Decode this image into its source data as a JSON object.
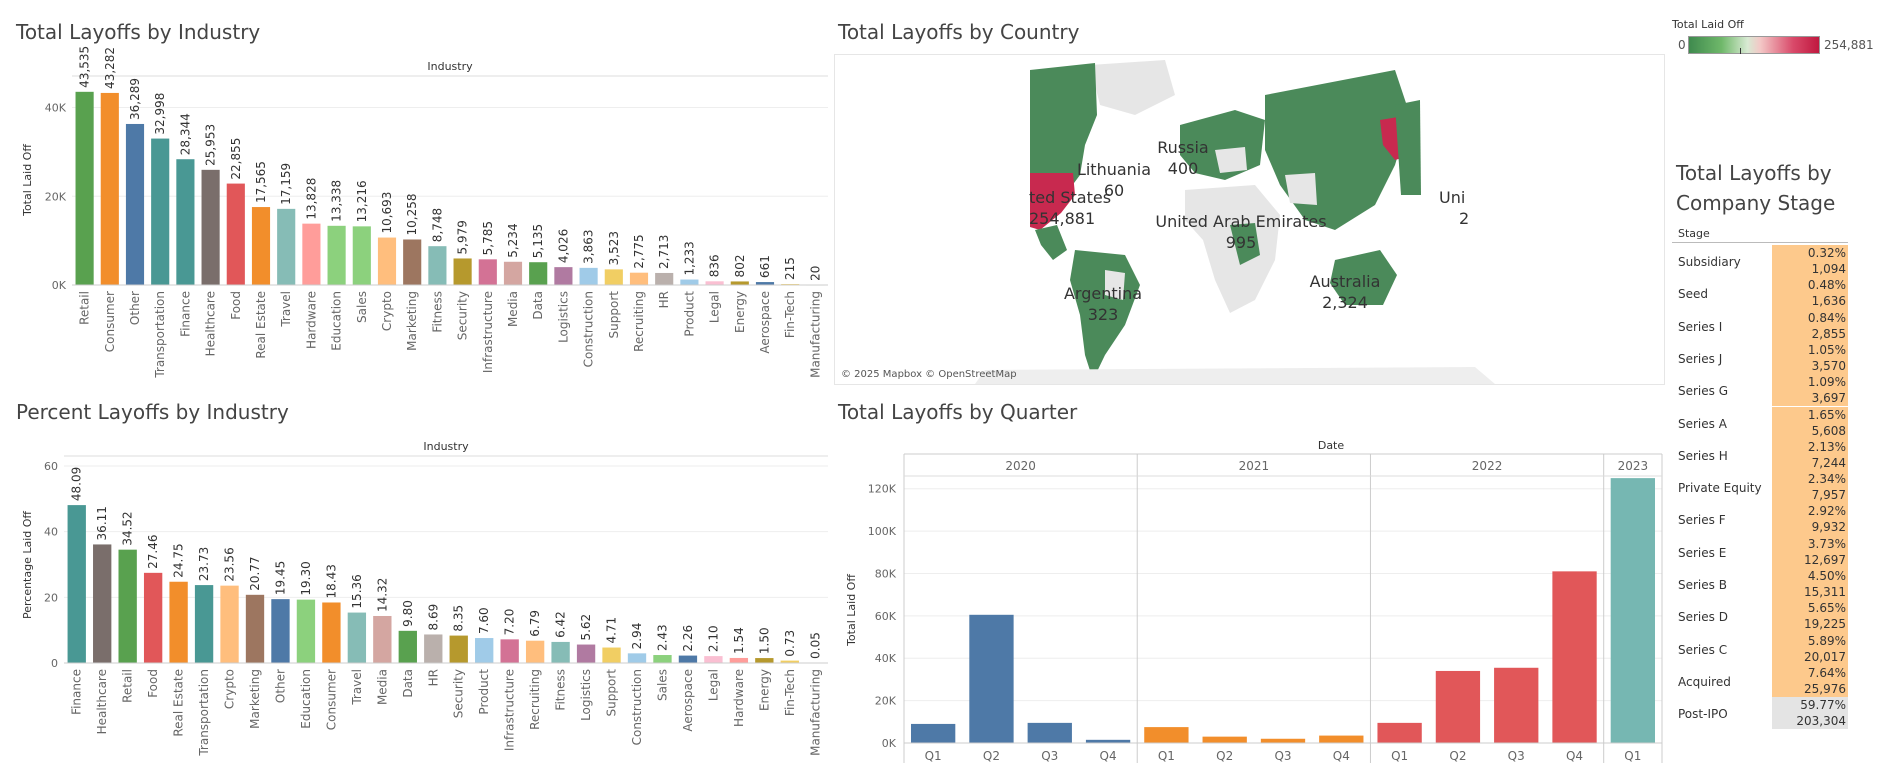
{
  "titles": {
    "industry": "Total Layoffs by Industry",
    "country": "Total Layoffs by Country",
    "percent": "Percent Layoffs by Industry",
    "quarter": "Total Layoffs by Quarter",
    "stage": "Total Layoffs by Company Stage"
  },
  "legend": {
    "title": "Total Laid Off",
    "min": "0",
    "max": "254,881"
  },
  "map": {
    "attribution": "© 2025 Mapbox © OpenStreetMap",
    "labels": [
      {
        "name": "Russia",
        "value": "400"
      },
      {
        "name": "Lithuania",
        "value": "60"
      },
      {
        "name": "ted States",
        "value": "254,881"
      },
      {
        "name": "United Arab Emirates",
        "value": "995"
      },
      {
        "name": "Argentina",
        "value": "323"
      },
      {
        "name": "Australia",
        "value": "2,324"
      },
      {
        "name": "Uni",
        "value": "2"
      }
    ]
  },
  "chart_data": [
    {
      "type": "bar",
      "title": "Total Layoffs by Industry",
      "header": "Industry",
      "ylabel": "Total Laid Off",
      "ylim": [
        0,
        48000
      ],
      "yticks": [
        "0K",
        "20K",
        "40K"
      ],
      "ytick_values": [
        0,
        20000,
        40000
      ],
      "categories": [
        "Retail",
        "Consumer",
        "Other",
        "Transportation",
        "Finance",
        "Healthcare",
        "Food",
        "Real Estate",
        "Travel",
        "Hardware",
        "Education",
        "Sales",
        "Crypto",
        "Marketing",
        "Fitness",
        "Security",
        "Infrastructure",
        "Media",
        "Data",
        "Logistics",
        "Construction",
        "Support",
        "Recruiting",
        "HR",
        "Product",
        "Legal",
        "Energy",
        "Aerospace",
        "Fin-Tech",
        "Manufacturing"
      ],
      "values": [
        43535,
        43282,
        36289,
        32998,
        28344,
        25953,
        22855,
        17565,
        17159,
        13828,
        13338,
        13216,
        10693,
        10258,
        8748,
        5979,
        5785,
        5234,
        5135,
        4026,
        3863,
        3523,
        2775,
        2713,
        1233,
        836,
        802,
        661,
        215,
        20
      ],
      "labels": [
        "43,535",
        "43,282",
        "36,289",
        "32,998",
        "28,344",
        "25,953",
        "22,855",
        "17,565",
        "17,159",
        "13,828",
        "13,338",
        "13,216",
        "10,693",
        "10,258",
        "8,748",
        "5,979",
        "5,785",
        "5,234",
        "5,135",
        "4,026",
        "3,863",
        "3,523",
        "2,775",
        "2,713",
        "1,233",
        "836",
        "802",
        "661",
        "215",
        "20"
      ]
    },
    {
      "type": "bar",
      "title": "Percent Layoffs by Industry",
      "header": "Industry",
      "ylabel": "Percentage Laid Off",
      "ylim": [
        0,
        60
      ],
      "yticks": [
        "0",
        "20",
        "40",
        "60"
      ],
      "ytick_values": [
        0,
        20,
        40,
        60
      ],
      "categories": [
        "Finance",
        "Healthcare",
        "Retail",
        "Food",
        "Real Estate",
        "Transportation",
        "Crypto",
        "Marketing",
        "Other",
        "Education",
        "Consumer",
        "Travel",
        "Media",
        "Data",
        "HR",
        "Security",
        "Product",
        "Infrastructure",
        "Recruiting",
        "Fitness",
        "Logistics",
        "Support",
        "Construction",
        "Sales",
        "Aerospace",
        "Legal",
        "Hardware",
        "Energy",
        "Fin-Tech",
        "Manufacturing"
      ],
      "values": [
        48.09,
        36.11,
        34.52,
        27.46,
        24.75,
        23.73,
        23.56,
        20.77,
        19.45,
        19.3,
        18.43,
        15.36,
        14.32,
        9.8,
        8.69,
        8.35,
        7.6,
        7.2,
        6.79,
        6.42,
        5.62,
        4.71,
        2.94,
        2.43,
        2.26,
        2.1,
        1.54,
        1.5,
        0.73,
        0.05
      ],
      "labels": [
        "48.09",
        "36.11",
        "34.52",
        "27.46",
        "24.75",
        "23.73",
        "23.56",
        "20.77",
        "19.45",
        "19.30",
        "18.43",
        "15.36",
        "14.32",
        "9.80",
        "8.69",
        "8.35",
        "7.60",
        "7.20",
        "6.79",
        "6.42",
        "5.62",
        "4.71",
        "2.94",
        "2.43",
        "2.26",
        "2.10",
        "1.54",
        "1.50",
        "0.73",
        "0.05"
      ]
    },
    {
      "type": "bar",
      "title": "Total Layoffs by Quarter",
      "header": "Date",
      "ylabel": "Total Laid Off",
      "ylim": [
        0,
        126000
      ],
      "yticks": [
        "0K",
        "20K",
        "40K",
        "60K",
        "80K",
        "100K",
        "120K"
      ],
      "ytick_values": [
        0,
        20000,
        40000,
        60000,
        80000,
        100000,
        120000
      ],
      "years": [
        {
          "year": "2020",
          "quarters": [
            "Q1",
            "Q2",
            "Q3",
            "Q4"
          ],
          "values": [
            9000,
            60500,
            9500,
            1500
          ]
        },
        {
          "year": "2021",
          "quarters": [
            "Q1",
            "Q2",
            "Q3",
            "Q4"
          ],
          "values": [
            7500,
            3000,
            2000,
            3500
          ]
        },
        {
          "year": "2022",
          "quarters": [
            "Q1",
            "Q2",
            "Q3",
            "Q4"
          ],
          "values": [
            9500,
            34000,
            35500,
            81000
          ]
        },
        {
          "year": "2023",
          "quarters": [
            "Q1"
          ],
          "values": [
            125000
          ]
        }
      ]
    },
    {
      "type": "table",
      "title": "Total Layoffs by Company Stage",
      "column": "Stage",
      "rows": [
        {
          "stage": "Subsidiary",
          "pct": "0.32%",
          "total": "1,094"
        },
        {
          "stage": "Seed",
          "pct": "0.48%",
          "total": "1,636"
        },
        {
          "stage": "Series I",
          "pct": "0.84%",
          "total": "2,855"
        },
        {
          "stage": "Series J",
          "pct": "1.05%",
          "total": "3,570"
        },
        {
          "stage": "Series G",
          "pct": "1.09%",
          "total": "3,697"
        },
        {
          "stage": "Series A",
          "pct": "1.65%",
          "total": "5,608"
        },
        {
          "stage": "Series H",
          "pct": "2.13%",
          "total": "7,244"
        },
        {
          "stage": "Private Equity",
          "pct": "2.34%",
          "total": "7,957"
        },
        {
          "stage": "Series F",
          "pct": "2.92%",
          "total": "9,932"
        },
        {
          "stage": "Series E",
          "pct": "3.73%",
          "total": "12,697"
        },
        {
          "stage": "Series B",
          "pct": "4.50%",
          "total": "15,311"
        },
        {
          "stage": "Series D",
          "pct": "5.65%",
          "total": "19,225"
        },
        {
          "stage": "Series C",
          "pct": "5.89%",
          "total": "20,017"
        },
        {
          "stage": "Acquired",
          "pct": "7.64%",
          "total": "25,976"
        },
        {
          "stage": "Post-IPO",
          "pct": "59.77%",
          "total": "203,304"
        }
      ]
    }
  ],
  "colors": {
    "tableau10": [
      "#59a14f",
      "#f28e2b",
      "#4e79a7",
      "#499894",
      "#76b7b2",
      "#7a6e6b",
      "#e15759",
      "#f28e2b",
      "#86bcb6",
      "#ff9d9a"
    ],
    "q2020": "#4e79a7",
    "q2021": "#f28e2b",
    "q2022": "#e15759",
    "q2023": "#76b7b2",
    "stage_cell": "#fdc98c",
    "stage_cell_last": "#e4e4e4",
    "map_green": "#4b8a5a",
    "map_red": "#c8294f",
    "map_gray": "#e6e6e6"
  }
}
